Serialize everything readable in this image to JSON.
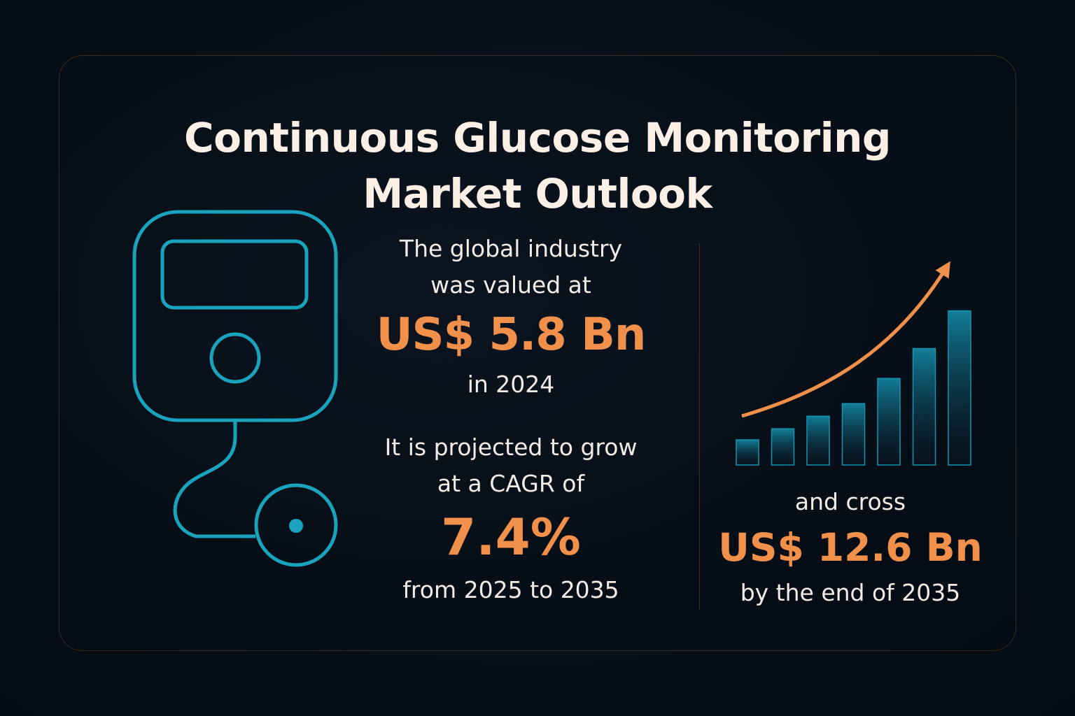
{
  "title": {
    "line1": "Continuous Glucose Monitoring",
    "line2": "Market Outlook"
  },
  "device_icon": "glucose-monitor-icon",
  "stats": {
    "valued_line1": "The global industry",
    "valued_line2": "was valued at",
    "value_2024": "US$ 5.8 Bn",
    "year_line": "in 2024",
    "cagr_line1": "It is projected to grow",
    "cagr_line2": "at a CAGR of",
    "cagr_value": "7.4%",
    "period_line": "from 2025 to 2035"
  },
  "outlook": {
    "line1": "and cross",
    "value_2035": "US$ 12.6 Bn",
    "line2": "by the end of 2035"
  },
  "growth_chart": {
    "icon": "growth-bars-arrow-icon",
    "bar_levels": [
      0.16,
      0.23,
      0.31,
      0.39,
      0.55,
      0.74,
      0.98
    ]
  },
  "colors": {
    "accent_orange": "#f0904a",
    "accent_teal": "#1aa3bd",
    "text_light": "#f3ece6",
    "background": "#060d16"
  }
}
